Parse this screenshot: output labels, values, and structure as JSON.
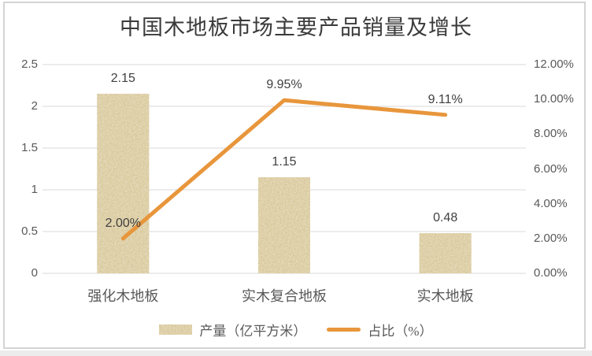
{
  "chart_data": {
    "type": "combo",
    "title": "中国木地板市场主要产品销量及增长",
    "categories": [
      "强化木地板",
      "实木复合地板",
      "实木地板"
    ],
    "series": [
      {
        "name": "产量（亿平方米）",
        "type": "bar",
        "axis": "left",
        "values": [
          2.15,
          1.15,
          0.48
        ],
        "labels": [
          "2.15",
          "1.15",
          "0.48"
        ],
        "color": "#d0bb82"
      },
      {
        "name": "占比（%）",
        "type": "line",
        "axis": "right",
        "values": [
          2.0,
          9.95,
          9.11
        ],
        "labels": [
          "2.00%",
          "9.95%",
          "9.11%"
        ],
        "color": "#e8963c"
      }
    ],
    "left_axis": {
      "min": 0,
      "max": 2.5,
      "ticks": [
        "2.5",
        "2",
        "1.5",
        "1",
        "0.5",
        "0"
      ]
    },
    "right_axis": {
      "min": 0,
      "max": 12,
      "ticks": [
        "12.00%",
        "10.00%",
        "8.00%",
        "6.00%",
        "4.00%",
        "2.00%",
        "0.00%"
      ]
    },
    "grid": true,
    "legend_position": "bottom"
  },
  "colors": {
    "gridline": "#d9d9d9",
    "axis_text": "#595959",
    "data_label_text": "#404040",
    "bar_base": "#d0bb82",
    "bar_noise_light": "#efe4bb",
    "bar_noise_dark": "#a98f50",
    "line_orange": "#e8963c",
    "frame_border": "#d4d4d4"
  }
}
